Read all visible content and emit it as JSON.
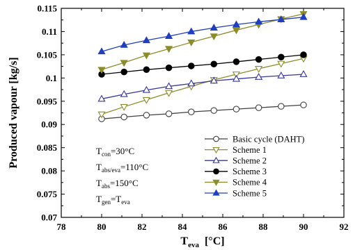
{
  "chart_data": {
    "type": "line",
    "xlabel": "T",
    "xlabel_sub": "eva",
    "xlabel_unit": "[°C]",
    "ylabel": "Produced vapour [kg/s]",
    "xlim": [
      78,
      92
    ],
    "ylim": [
      0.07,
      0.115
    ],
    "xticks": [
      78,
      80,
      82,
      84,
      86,
      88,
      90,
      92
    ],
    "xtick_labels": [
      "78",
      "80",
      "82",
      "84",
      "86",
      "88",
      "90",
      "92"
    ],
    "yticks": [
      0.07,
      0.075,
      0.08,
      0.085,
      0.09,
      0.095,
      0.1,
      0.105,
      0.11,
      0.115
    ],
    "ytick_labels": [
      "0.07",
      "0.075",
      "0.08",
      "0.085",
      "0.09",
      "0.095",
      "0.1",
      "0.105",
      "0.11",
      "0.115"
    ],
    "x": [
      80,
      81.11,
      82.22,
      83.33,
      84.44,
      85.56,
      86.67,
      87.78,
      88.89,
      90
    ],
    "grid": false,
    "legend_position": "bottom-right",
    "series": [
      {
        "name": "Basic cycle (DAHT)",
        "marker": "circle-open",
        "color": "#404040",
        "values": [
          0.0912,
          0.0916,
          0.092,
          0.0923,
          0.0927,
          0.093,
          0.0933,
          0.0936,
          0.0939,
          0.0942
        ]
      },
      {
        "name": "Scheme 1",
        "marker": "triangle-down-open",
        "color": "#8c8c2a",
        "values": [
          0.0922,
          0.0938,
          0.0953,
          0.0968,
          0.0982,
          0.0996,
          0.1008,
          0.102,
          0.1031,
          0.1042
        ]
      },
      {
        "name": "Scheme 2",
        "marker": "triangle-up-open",
        "color": "#3535a0",
        "values": [
          0.0955,
          0.0965,
          0.0974,
          0.0982,
          0.0988,
          0.0994,
          0.0998,
          0.1002,
          0.1005,
          0.1008
        ]
      },
      {
        "name": "Scheme 3",
        "marker": "circle-filled",
        "color": "#000000",
        "values": [
          0.1008,
          0.1013,
          0.1018,
          0.1022,
          0.1026,
          0.103,
          0.1035,
          0.104,
          0.1045,
          0.105
        ]
      },
      {
        "name": "Scheme 4",
        "marker": "triangle-down-filled",
        "color": "#8c8c2a",
        "values": [
          0.1018,
          0.1033,
          0.1049,
          0.1063,
          0.1077,
          0.109,
          0.1103,
          0.1115,
          0.1127,
          0.1138
        ]
      },
      {
        "name": "Scheme 5",
        "marker": "triangle-up-filled",
        "color": "#1f3fbf",
        "values": [
          0.1057,
          0.1071,
          0.1081,
          0.109,
          0.11,
          0.1108,
          0.1115,
          0.1121,
          0.1126,
          0.1131
        ]
      }
    ],
    "annotations": [
      {
        "main": "T",
        "sub": "con",
        "rest": "=30°C"
      },
      {
        "main": "T",
        "sub": "abs/eva",
        "rest": "=110°C"
      },
      {
        "main": "T",
        "sub": "abs",
        "rest": "=150°C"
      },
      {
        "main": "T",
        "sub": "gen",
        "rest": "=T",
        "sub2": "eva"
      }
    ]
  }
}
